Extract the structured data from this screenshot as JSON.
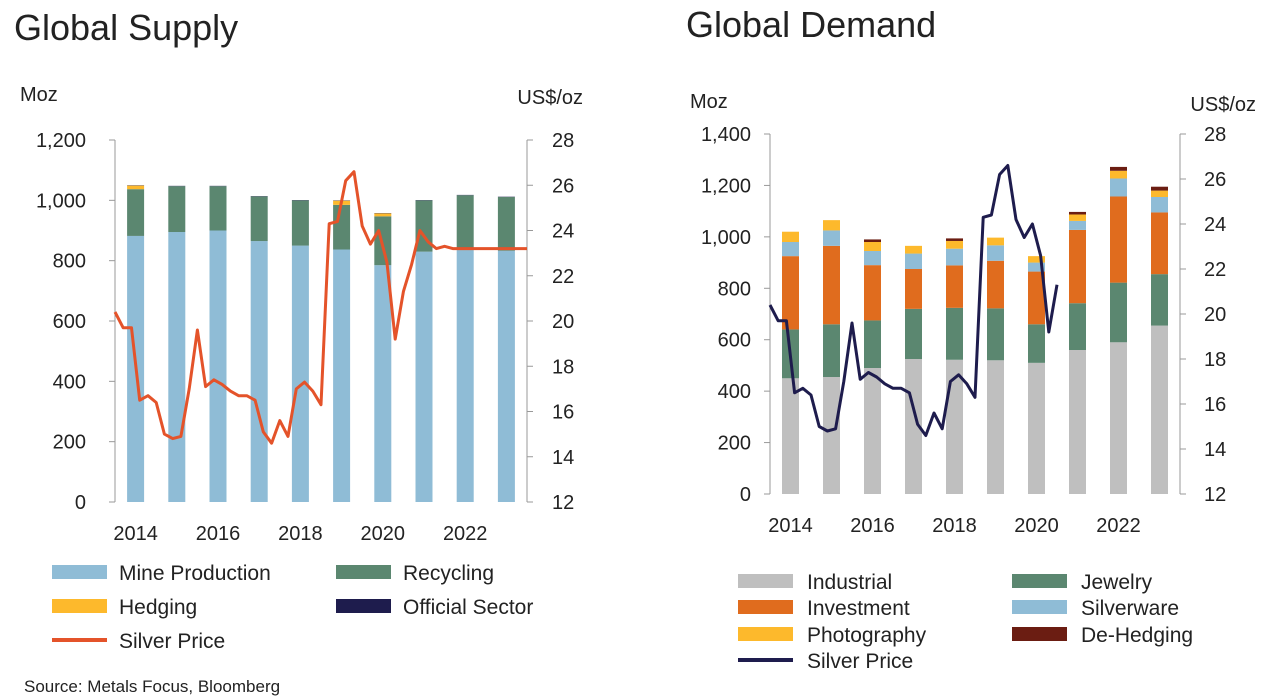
{
  "source": "Source: Metals Focus, Bloomberg",
  "chart_data": [
    {
      "type": "bar",
      "stacked": true,
      "title": "Global Supply",
      "ylabel": "Moz",
      "y2label": "US$/oz",
      "ylim": [
        0,
        1200
      ],
      "yticks": [
        0,
        200,
        400,
        600,
        800,
        1000,
        1200
      ],
      "ytick_labels": [
        "0",
        "200",
        "400",
        "600",
        "800",
        "1,000",
        "1,200"
      ],
      "y2lim": [
        12,
        28
      ],
      "y2ticks": [
        12,
        14,
        16,
        18,
        20,
        22,
        24,
        26,
        28
      ],
      "xlim": [
        2013.5,
        2023.5
      ],
      "xticks": [
        "2014",
        "2016",
        "2018",
        "2020",
        "2022"
      ],
      "grid": false,
      "legend_position": "bottom",
      "categories": [
        2014,
        2015,
        2016,
        2017,
        2018,
        2019,
        2020,
        2021,
        2022,
        2023
      ],
      "series": [
        {
          "name": "Mine Production",
          "color": "#8fbcd6",
          "values": [
            882,
            895,
            900,
            865,
            850,
            837,
            785,
            830,
            835,
            833
          ]
        },
        {
          "name": "Recycling",
          "color": "#5b8770",
          "values": [
            155,
            152,
            147,
            148,
            150,
            148,
            162,
            170,
            182,
            178
          ]
        },
        {
          "name": "Hedging",
          "color": "#fdb92c",
          "values": [
            12,
            0,
            0,
            0,
            0,
            14,
            10,
            0,
            0,
            0
          ]
        },
        {
          "name": "Official Sector",
          "color": "#1e1c4d",
          "values": [
            1,
            1,
            1,
            1,
            1,
            1,
            1,
            1,
            1,
            1
          ]
        }
      ],
      "line": {
        "name": "Silver Price",
        "color": "#e4532a",
        "axis": "right",
        "x": [
          2013.5,
          2013.7,
          2013.9,
          2014.1,
          2014.3,
          2014.5,
          2014.7,
          2014.9,
          2015.1,
          2015.3,
          2015.5,
          2015.7,
          2015.9,
          2016.1,
          2016.3,
          2016.5,
          2016.7,
          2016.9,
          2017.1,
          2017.3,
          2017.5,
          2017.7,
          2017.9,
          2018.1,
          2018.3,
          2018.5,
          2018.7,
          2018.9,
          2019.1,
          2019.3,
          2019.5,
          2019.7,
          2019.9,
          2020.1,
          2020.3,
          2020.5,
          2020.7,
          2020.9,
          2021.1,
          2021.3,
          2021.5,
          2021.7,
          2021.9,
          2022.1,
          2022.3,
          2022.5,
          2022.7,
          2022.9,
          2023.1,
          2023.3,
          2023.5
        ],
        "values": [
          20.4,
          19.7,
          19.7,
          16.5,
          16.7,
          16.4,
          15.0,
          14.8,
          14.9,
          17.0,
          19.6,
          17.1,
          17.4,
          17.2,
          16.9,
          16.7,
          16.7,
          16.5,
          15.1,
          14.6,
          15.6,
          14.9,
          17.0,
          17.3,
          16.9,
          16.3,
          24.3,
          24.4,
          26.2,
          26.6,
          24.2,
          23.4,
          24.0,
          22.6,
          19.2,
          21.3,
          22.5,
          24.0,
          23.5,
          23.2,
          23.3,
          23.2,
          23.2,
          23.2,
          23.2,
          23.2,
          23.2,
          23.2,
          23.2,
          23.2,
          23.2
        ]
      }
    },
    {
      "type": "bar",
      "stacked": true,
      "title": "Global Demand",
      "ylabel": "Moz",
      "y2label": "US$/oz",
      "ylim": [
        0,
        1400
      ],
      "yticks": [
        0,
        200,
        400,
        600,
        800,
        1000,
        1200,
        1400
      ],
      "ytick_labels": [
        "0",
        "200",
        "400",
        "600",
        "800",
        "1,000",
        "1,200",
        "1,400"
      ],
      "y2lim": [
        12,
        28
      ],
      "y2ticks": [
        12,
        14,
        16,
        18,
        20,
        22,
        24,
        26,
        28
      ],
      "xlim": [
        2013.5,
        2023.5
      ],
      "xticks": [
        "2014",
        "2016",
        "2018",
        "2020",
        "2022"
      ],
      "grid": false,
      "legend_position": "bottom",
      "categories": [
        2014,
        2015,
        2016,
        2017,
        2018,
        2019,
        2020,
        2021,
        2022,
        2023
      ],
      "series": [
        {
          "name": "Industrial",
          "color": "#bfbfbf",
          "values": [
            450,
            455,
            490,
            525,
            522,
            520,
            510,
            560,
            590,
            655
          ]
        },
        {
          "name": "Jewelry",
          "color": "#5b8770",
          "values": [
            190,
            205,
            185,
            195,
            202,
            202,
            150,
            182,
            232,
            200
          ]
        },
        {
          "name": "Investment",
          "color": "#e06c1e",
          "values": [
            285,
            305,
            215,
            155,
            165,
            185,
            205,
            285,
            335,
            240
          ]
        },
        {
          "name": "Silverware",
          "color": "#8fbcd6",
          "values": [
            55,
            60,
            55,
            60,
            65,
            60,
            35,
            35,
            70,
            60
          ]
        },
        {
          "name": "Photography",
          "color": "#fdb92c",
          "values": [
            40,
            40,
            35,
            30,
            30,
            30,
            25,
            25,
            30,
            25
          ]
        },
        {
          "name": "De-Hedging",
          "color": "#6b1d12",
          "values": [
            0,
            0,
            10,
            0,
            10,
            0,
            0,
            10,
            15,
            15
          ]
        }
      ],
      "line": {
        "name": "Silver Price",
        "color": "#1e1c4d",
        "axis": "right",
        "x": [
          2013.5,
          2013.7,
          2013.9,
          2014.1,
          2014.3,
          2014.5,
          2014.7,
          2014.9,
          2015.1,
          2015.3,
          2015.5,
          2015.7,
          2015.9,
          2016.1,
          2016.3,
          2016.5,
          2016.7,
          2016.9,
          2017.1,
          2017.3,
          2017.5,
          2017.7,
          2017.9,
          2018.1,
          2018.3,
          2018.5,
          2018.7,
          2018.9,
          2019.1,
          2019.3,
          2019.5,
          2019.7,
          2019.9,
          2020.1,
          2020.3,
          2020.5
        ],
        "values": [
          20.4,
          19.7,
          19.7,
          16.5,
          16.7,
          16.4,
          15.0,
          14.8,
          14.9,
          17.0,
          19.6,
          17.1,
          17.4,
          17.2,
          16.9,
          16.7,
          16.7,
          16.5,
          15.1,
          14.6,
          15.6,
          14.9,
          17.0,
          17.3,
          16.9,
          16.3,
          24.3,
          24.4,
          26.2,
          26.6,
          24.2,
          23.4,
          24.0,
          22.6,
          19.2,
          21.3
        ]
      }
    }
  ]
}
